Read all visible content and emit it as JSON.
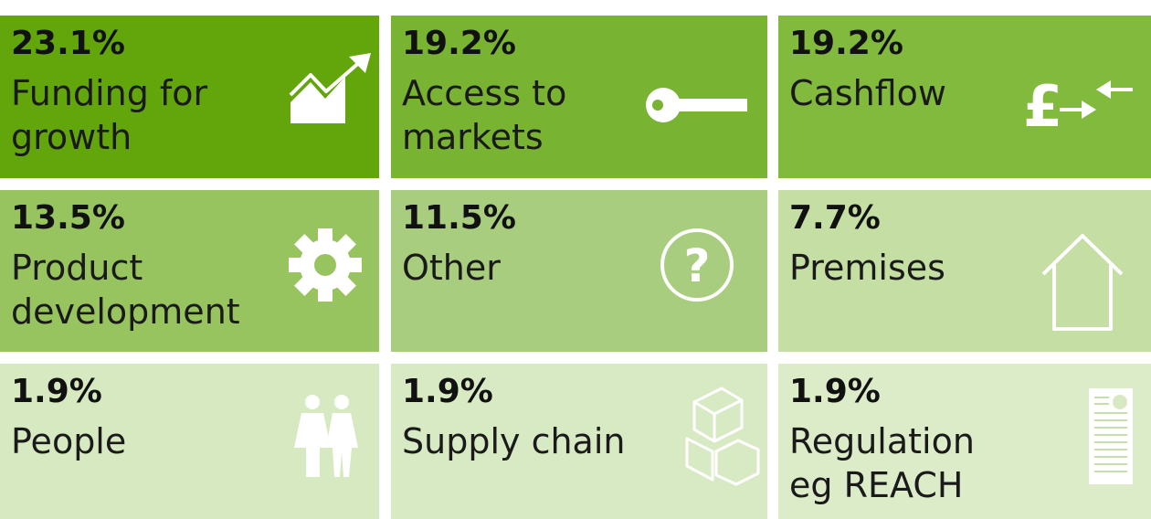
{
  "tiles": [
    {
      "value": "23.1%",
      "label_lines": [
        "Funding for",
        "growth"
      ],
      "color": "#62a60c"
    },
    {
      "value": "19.2%",
      "label_lines": [
        "Access to",
        "markets"
      ],
      "color": "#78b332"
    },
    {
      "value": "19.2%",
      "label_lines": [
        "Cashflow"
      ],
      "color": "#82ba3e"
    },
    {
      "value": "13.5%",
      "label_lines": [
        "Product",
        "development"
      ],
      "color": "#98c460"
    },
    {
      "value": "11.5%",
      "label_lines": [
        "Other"
      ],
      "color": "#a9cd7e"
    },
    {
      "value": "7.7%",
      "label_lines": [
        "Premises"
      ],
      "color": "#c4dea3"
    },
    {
      "value": "1.9%",
      "label_lines": [
        "People"
      ],
      "color": "#d6e9c0"
    },
    {
      "value": "1.9%",
      "label_lines": [
        "Supply chain"
      ],
      "color": "#d8eac4"
    },
    {
      "value": "1.9%",
      "label_lines": [
        "Regulation",
        "eg REACH"
      ],
      "color": "#dcecc9"
    }
  ]
}
